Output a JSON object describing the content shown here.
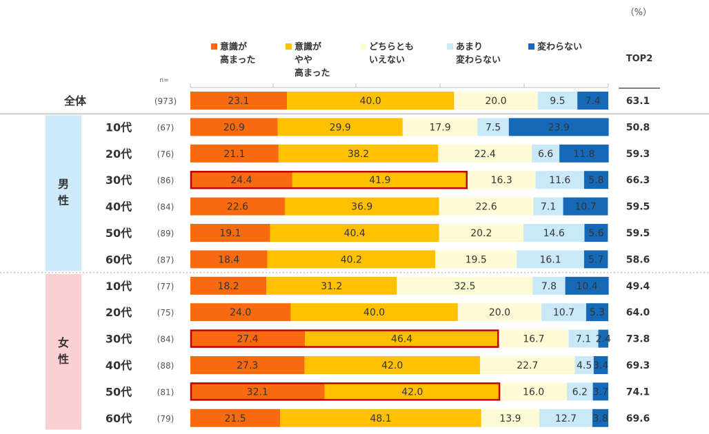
{
  "unit": "（%）",
  "n_label": "n=",
  "top2_header": "TOP2",
  "colors": {
    "series": [
      "#F86A10",
      "#FFC000",
      "#FFFBD4",
      "#C9E8F8",
      "#1669B7"
    ],
    "male_panel": "#CCEAFB",
    "female_panel": "#FBD0D4",
    "highlight": "#C00000"
  },
  "groups": [
    {
      "name": "全体",
      "display": "全体"
    },
    {
      "name": "男性",
      "display": "男性"
    },
    {
      "name": "女性",
      "display": "女性"
    }
  ],
  "chart_data": {
    "type": "bar",
    "orientation": "horizontal",
    "stacked": true,
    "xlim": [
      0,
      100
    ],
    "ylabel": "",
    "xlabel": "",
    "legend_position": "top",
    "series": [
      {
        "name": "意識が高まった",
        "legend_lines": [
          "意識が",
          "高まった"
        ]
      },
      {
        "name": "意識がやや高まった",
        "legend_lines": [
          "意識が",
          "やや",
          "高まった"
        ]
      },
      {
        "name": "どちらともいえない",
        "legend_lines": [
          "どちらとも",
          "いえない"
        ]
      },
      {
        "name": "あまり変わらない",
        "legend_lines": [
          "あまり",
          "変わらない"
        ]
      },
      {
        "name": "変わらない",
        "legend_lines": [
          "変わらない"
        ]
      }
    ],
    "rows": [
      {
        "group": "全体",
        "label": "全体",
        "n": "(973)",
        "values": [
          23.1,
          40.0,
          20.0,
          9.5,
          7.4
        ],
        "labels": [
          "23.1",
          "40.0",
          "20.0",
          "9.5",
          "7.4"
        ],
        "top2": "63.1",
        "highlight": false
      },
      {
        "group": "男性",
        "label": "10代",
        "n": "(67)",
        "values": [
          20.9,
          29.9,
          17.9,
          7.5,
          23.9
        ],
        "labels": [
          "20.9",
          "29.9",
          "17.9",
          "7.5",
          "23.9"
        ],
        "top2": "50.8",
        "highlight": false
      },
      {
        "group": "男性",
        "label": "20代",
        "n": "(76)",
        "values": [
          21.1,
          38.2,
          22.4,
          6.6,
          11.8
        ],
        "labels": [
          "21.1",
          "38.2",
          "22.4",
          "6.6",
          "11.8"
        ],
        "top2": "59.3",
        "highlight": false
      },
      {
        "group": "男性",
        "label": "30代",
        "n": "(86)",
        "values": [
          24.4,
          41.9,
          16.3,
          11.6,
          5.8
        ],
        "labels": [
          "24.4",
          "41.9",
          "16.3",
          "11.6",
          "5.8"
        ],
        "top2": "66.3",
        "highlight": true
      },
      {
        "group": "男性",
        "label": "40代",
        "n": "(84)",
        "values": [
          22.6,
          36.9,
          22.6,
          7.1,
          10.7
        ],
        "labels": [
          "22.6",
          "36.9",
          "22.6",
          "7.1",
          "10.7"
        ],
        "top2": "59.5",
        "highlight": false
      },
      {
        "group": "男性",
        "label": "50代",
        "n": "(89)",
        "values": [
          19.1,
          40.4,
          20.2,
          14.6,
          5.6
        ],
        "labels": [
          "19.1",
          "40.4",
          "20.2",
          "14.6",
          "5.6"
        ],
        "top2": "59.5",
        "highlight": false
      },
      {
        "group": "男性",
        "label": "60代",
        "n": "(87)",
        "values": [
          18.4,
          40.2,
          19.5,
          16.1,
          5.7
        ],
        "labels": [
          "18.4",
          "40.2",
          "19.5",
          "16.1",
          "5.7"
        ],
        "top2": "58.6",
        "highlight": false
      },
      {
        "group": "女性",
        "label": "10代",
        "n": "(77)",
        "values": [
          18.2,
          31.2,
          32.5,
          7.8,
          10.4
        ],
        "labels": [
          "18.2",
          "31.2",
          "32.5",
          "7.8",
          "10.4"
        ],
        "top2": "49.4",
        "highlight": false
      },
      {
        "group": "女性",
        "label": "20代",
        "n": "(75)",
        "values": [
          24.0,
          40.0,
          20.0,
          10.7,
          5.3
        ],
        "labels": [
          "24.0",
          "40.0",
          "20.0",
          "10.7",
          "5.3"
        ],
        "top2": "64.0",
        "highlight": false
      },
      {
        "group": "女性",
        "label": "30代",
        "n": "(84)",
        "values": [
          27.4,
          46.4,
          16.7,
          7.1,
          2.4
        ],
        "labels": [
          "27.4",
          "46.4",
          "16.7",
          "7.1",
          "2.4"
        ],
        "top2": "73.8",
        "highlight": true
      },
      {
        "group": "女性",
        "label": "40代",
        "n": "(88)",
        "values": [
          27.3,
          42.0,
          22.7,
          4.5,
          3.4
        ],
        "labels": [
          "27.3",
          "42.0",
          "22.7",
          "4.5",
          "3.4"
        ],
        "top2": "69.3",
        "highlight": false
      },
      {
        "group": "女性",
        "label": "50代",
        "n": "(81)",
        "values": [
          32.1,
          42.0,
          16.0,
          6.2,
          3.7
        ],
        "labels": [
          "32.1",
          "42.0",
          "16.0",
          "6.2",
          "3.7"
        ],
        "top2": "74.1",
        "highlight": true
      },
      {
        "group": "女性",
        "label": "60代",
        "n": "(79)",
        "values": [
          21.5,
          48.1,
          13.9,
          12.7,
          3.8
        ],
        "labels": [
          "21.5",
          "48.1",
          "13.9",
          "12.7",
          "3.8"
        ],
        "top2": "69.6",
        "highlight": false
      }
    ]
  }
}
